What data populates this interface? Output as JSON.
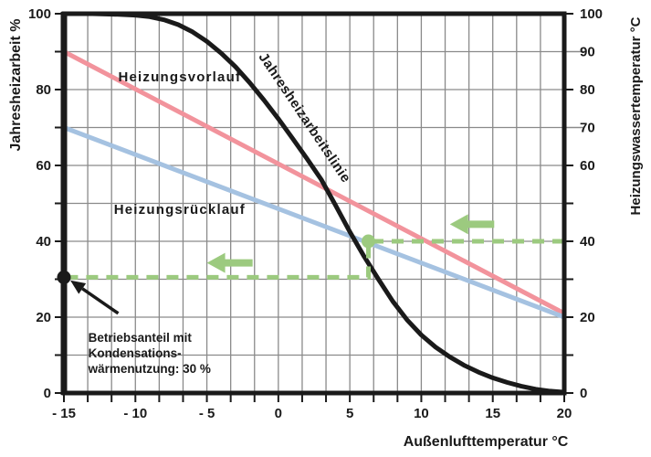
{
  "page": {
    "background": "#ffffff"
  },
  "chart_data": {
    "type": "line",
    "title": "",
    "grid": {
      "shown": true,
      "color": "#8a8a8a"
    },
    "frame_color": "#1a1a1a",
    "x_axis": {
      "label": "Außenlufttemperatur °C",
      "min": -15,
      "max": 20,
      "major_tick_step": 5,
      "minor_divisions_per_major": 3,
      "tick_labels": [
        "- 15",
        "- 10",
        "- 5",
        "0",
        "5",
        "10",
        "15",
        "20"
      ],
      "tick_values": [
        -15,
        -10,
        -5,
        0,
        5,
        10,
        15,
        20
      ]
    },
    "y_left_axis": {
      "label": "Jahresheizarbeit %",
      "min": 0,
      "max": 100,
      "grid_step": 10,
      "tick_step": 10,
      "tick_labels": [
        "100",
        "80",
        "60",
        "40",
        "20",
        "0"
      ],
      "tick_values": [
        100,
        80,
        60,
        40,
        20,
        0
      ]
    },
    "y_right_axis": {
      "label": "Heizungswassertemperatur °C",
      "min": 0,
      "max": 100,
      "tick_step": 10,
      "long_tick_values": [
        90,
        70
      ],
      "tick_labels": [
        "100",
        "90",
        "80",
        "70",
        "60",
        "40",
        "20",
        "0"
      ],
      "tick_values": [
        100,
        90,
        80,
        70,
        60,
        40,
        20,
        0
      ]
    },
    "series": [
      {
        "id": "heizungsvorlauf",
        "name": "Heizungsvorlauf",
        "color": "#f2939c",
        "stroke_width": 5,
        "points": [
          [
            -15,
            90
          ],
          [
            20,
            21
          ]
        ]
      },
      {
        "id": "heizungsruecklauf",
        "name": "Heizungsrücklauf",
        "color": "#a5c2e1",
        "stroke_width": 5,
        "points": [
          [
            -15,
            70
          ],
          [
            20,
            20
          ]
        ]
      },
      {
        "id": "jahresheizarbeitslinie",
        "name": "Jahresheizarbeitslinie",
        "color": "#1a1a1a",
        "stroke_width": 5,
        "points": [
          [
            -15,
            100
          ],
          [
            -13,
            100
          ],
          [
            -11,
            99.8
          ],
          [
            -10,
            99.6
          ],
          [
            -9,
            99.2
          ],
          [
            -8,
            98.4
          ],
          [
            -7,
            97.1
          ],
          [
            -6,
            95.2
          ],
          [
            -5,
            92.7
          ],
          [
            -4,
            89.6
          ],
          [
            -3,
            86
          ],
          [
            -2,
            81.8
          ],
          [
            -1,
            77.2
          ],
          [
            0,
            72.3
          ],
          [
            1,
            67.1
          ],
          [
            2,
            61.8
          ],
          [
            3,
            56.3
          ],
          [
            4,
            49.5
          ],
          [
            5,
            42.5
          ],
          [
            6,
            36
          ],
          [
            7,
            30
          ],
          [
            8,
            24.2
          ],
          [
            9,
            19.3
          ],
          [
            10,
            15.3
          ],
          [
            11,
            12.1
          ],
          [
            12,
            9.5
          ],
          [
            13,
            7.3
          ],
          [
            14,
            5.5
          ],
          [
            15,
            4
          ],
          [
            16,
            2.8
          ],
          [
            17,
            1.8
          ],
          [
            18,
            1
          ],
          [
            19,
            0.5
          ],
          [
            20,
            0.2
          ]
        ]
      }
    ],
    "series_labels": [
      {
        "text": "Heizungsvorlauf",
        "color": "#f2939c",
        "x": -6.9,
        "y": 82.2,
        "rotation": 0,
        "font_size": 15,
        "letter_spacing": 1.2
      },
      {
        "text": "Heizungsrücklauf",
        "color": "#a5c2e1",
        "x": -6.9,
        "y": 47.2,
        "rotation": 0,
        "font_size": 15,
        "letter_spacing": 1.2
      },
      {
        "text": "Jahresheizarbeitslinie",
        "color": "#1a1a1a",
        "x": -1.4,
        "y": 88.7,
        "rotation": 56,
        "font_size": 15,
        "letter_spacing": 0.5
      }
    ],
    "annotations": {
      "guide_color": "#9cca7f",
      "guide_path": [
        [
          20,
          40
        ],
        [
          6.3,
          40
        ],
        [
          6.3,
          30.5
        ],
        [
          -15,
          30.5
        ]
      ],
      "marker_point": {
        "x": 6.3,
        "y": 40,
        "color": "#9cca7f"
      },
      "axis_point": {
        "x": -15,
        "y": 30.5,
        "color": "#1a1a1a"
      },
      "green_arrows": [
        {
          "tip": [
            12,
            44.5
          ],
          "tail": [
            15.1,
            44.5
          ]
        },
        {
          "tip": [
            -5,
            34.3
          ],
          "tail": [
            -1.8,
            34.3
          ]
        }
      ],
      "black_arrow": {
        "from": [
          -11.2,
          21
        ],
        "to": [
          -14.55,
          29.7
        ]
      },
      "note": {
        "lines": [
          "Betriebsanteil mit",
          "Kondensations-",
          "wärmenutzung: 30 %"
        ],
        "x": -13.3,
        "y": 13.5,
        "font_size": 13.5
      }
    }
  }
}
